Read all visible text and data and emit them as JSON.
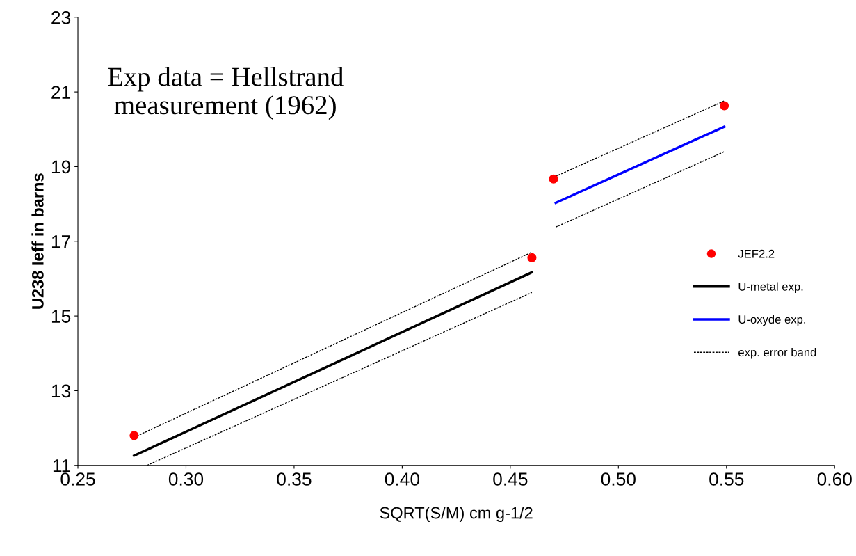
{
  "chart_data": {
    "type": "line",
    "xlabel": "SQRT(S/M) cm g-1/2",
    "ylabel": "U238 Ieff in barns",
    "xlim": [
      0.25,
      0.6
    ],
    "xticks": [
      {
        "value": 0.25,
        "label": "0.25"
      },
      {
        "value": 0.3,
        "label": "0.30"
      },
      {
        "value": 0.35,
        "label": "0.35"
      },
      {
        "value": 0.4,
        "label": "0.40"
      },
      {
        "value": 0.45,
        "label": "0.45"
      },
      {
        "value": 0.5,
        "label": "0.50"
      },
      {
        "value": 0.55,
        "label": "0.55"
      },
      {
        "value": 0.6,
        "label": "0.60"
      }
    ],
    "ylim": [
      11,
      23
    ],
    "yticks": [
      11,
      13,
      15,
      17,
      19,
      21,
      23
    ],
    "grid": false,
    "legend": "right",
    "annotations": [
      "Exp data = Hellstrand\nmeasurement (1962)"
    ],
    "series": [
      {
        "name": "JEF2.2",
        "type": "scatter",
        "color": "#ff0000",
        "marker": "circle",
        "x": [
          0.276,
          0.46,
          0.47,
          0.549
        ],
        "values": [
          11.8,
          16.56,
          18.67,
          20.63
        ]
      },
      {
        "name": "U-metal exp.",
        "color": "#000000",
        "line_style": "solid",
        "x": [
          0.276,
          0.46
        ],
        "values": [
          11.26,
          16.17
        ]
      },
      {
        "name": "U-oxyde exp.",
        "color": "#0000ff",
        "line_style": "solid",
        "x": [
          0.471,
          0.549
        ],
        "values": [
          18.03,
          20.07
        ]
      },
      {
        "name": "exp. error band",
        "color": "#000000",
        "line_style": "dashed",
        "x": [
          0.276,
          0.46
        ],
        "values": [
          11.75,
          16.71
        ]
      },
      {
        "color": "#000000",
        "line_style": "dashed",
        "x": [
          0.282,
          0.46
        ],
        "values": [
          11.0,
          15.63
        ]
      },
      {
        "color": "#000000",
        "line_style": "dashed",
        "x": [
          0.471,
          0.549
        ],
        "values": [
          18.74,
          20.76
        ]
      },
      {
        "color": "#000000",
        "line_style": "dashed",
        "x": [
          0.471,
          0.549
        ],
        "values": [
          17.38,
          19.4
        ]
      }
    ]
  }
}
